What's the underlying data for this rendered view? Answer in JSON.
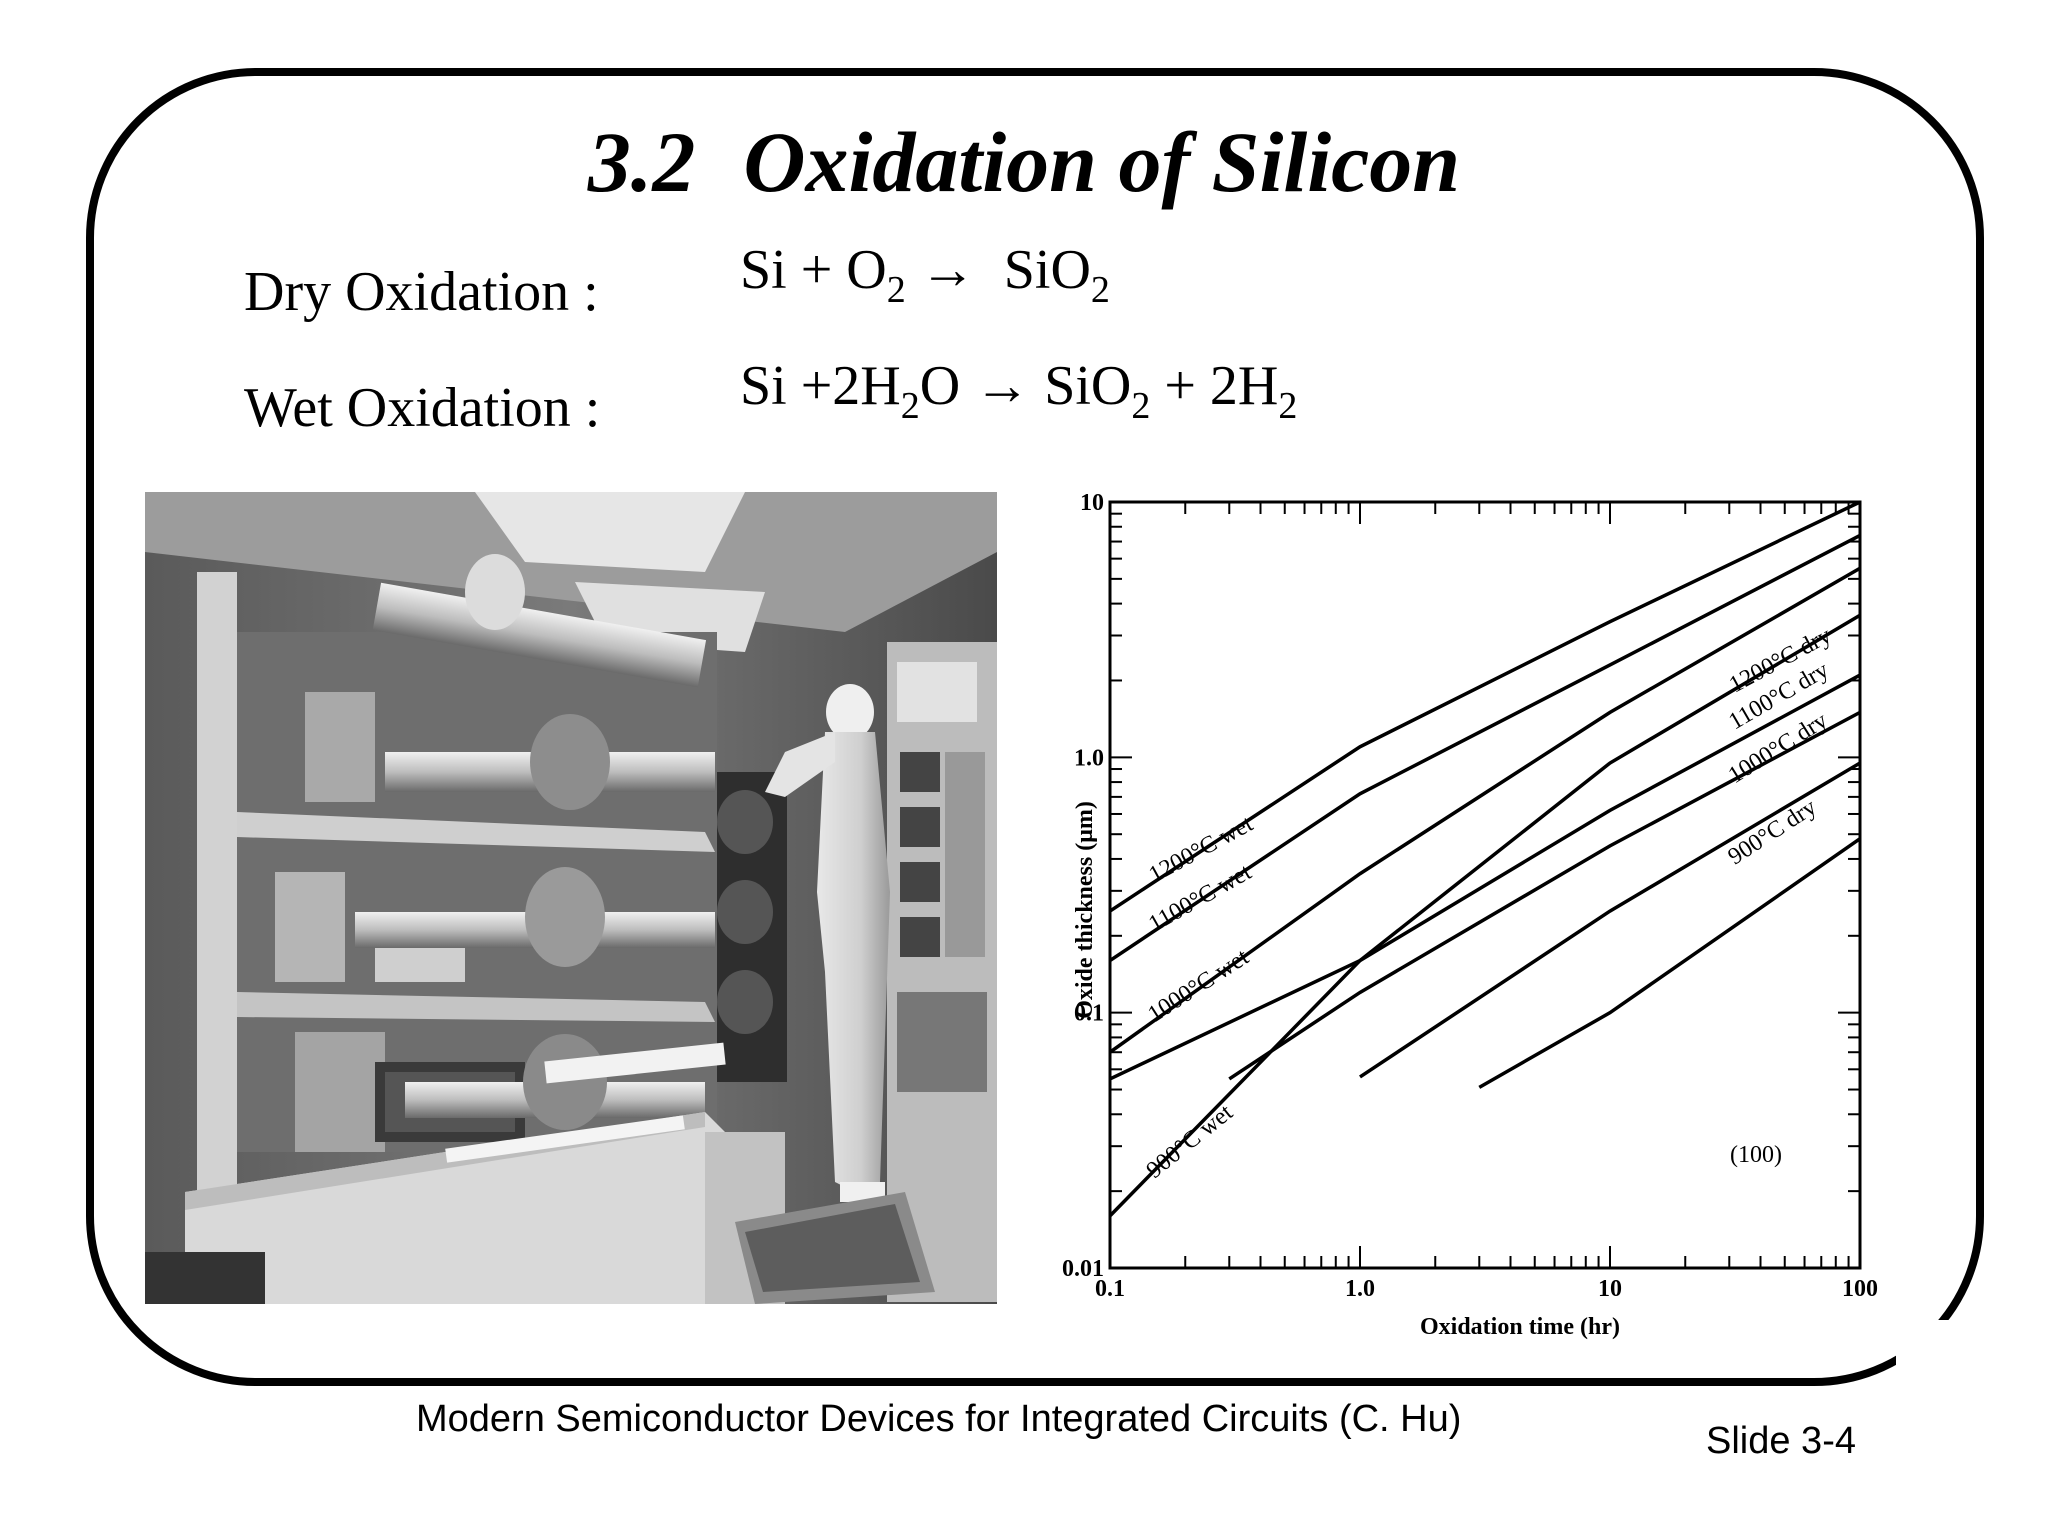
{
  "slide": {
    "title_number": "3.2",
    "title_text": "Oxidation of Silicon",
    "dry_label": "Dry Oxidation :",
    "wet_label": "Wet Oxidation :",
    "dry_eq": {
      "a": "Si + O",
      "a_sub": "2",
      "arrow": "→",
      "b": "SiO",
      "b_sub": "2"
    },
    "wet_eq": {
      "a": "Si +2H",
      "a_sub": "2",
      "a2": "O",
      "arrow": "→",
      "b": "SiO",
      "b_sub": "2",
      "c": "+ 2H",
      "c_sub": "2"
    },
    "footer": "Modern Semiconductor Devices for Integrated Circuits (C. Hu)",
    "slide_number": "Slide 3-4"
  },
  "chart_data": {
    "type": "line",
    "xlabel": "Oxidation time (hr)",
    "ylabel": "Oxide thickness (μm)",
    "x_scale": "log",
    "y_scale": "log",
    "xlim": [
      0.1,
      100
    ],
    "ylim": [
      0.01,
      10
    ],
    "x_ticks": [
      "0.1",
      "1.0",
      "10",
      "100"
    ],
    "y_ticks": [
      "0.01",
      "0.1",
      "1.0",
      "10"
    ],
    "annotation": "(100)",
    "series": [
      {
        "name": "1200°C wet",
        "points": [
          [
            0.1,
            0.25
          ],
          [
            1,
            1.1
          ],
          [
            10,
            3.4
          ],
          [
            100,
            10
          ]
        ]
      },
      {
        "name": "1100°C wet",
        "points": [
          [
            0.1,
            0.16
          ],
          [
            1,
            0.72
          ],
          [
            10,
            2.3
          ],
          [
            100,
            7.4
          ]
        ]
      },
      {
        "name": "1000°C wet",
        "points": [
          [
            0.1,
            0.07
          ],
          [
            1,
            0.35
          ],
          [
            10,
            1.5
          ],
          [
            100,
            5.5
          ]
        ]
      },
      {
        "name": "900°C wet",
        "points": [
          [
            0.1,
            0.016
          ],
          [
            1,
            0.16
          ],
          [
            10,
            0.95
          ],
          [
            100,
            3.6
          ]
        ]
      },
      {
        "name": "1200°C dry",
        "points": [
          [
            0.1,
            0.055
          ],
          [
            1,
            0.16
          ],
          [
            10,
            0.62
          ],
          [
            100,
            2.1
          ]
        ]
      },
      {
        "name": "1100°C dry",
        "points": [
          [
            0.3,
            0.055
          ],
          [
            1,
            0.12
          ],
          [
            10,
            0.45
          ],
          [
            100,
            1.5
          ]
        ]
      },
      {
        "name": "1000°C dry",
        "points": [
          [
            1,
            0.056
          ],
          [
            10,
            0.25
          ],
          [
            100,
            0.95
          ]
        ]
      },
      {
        "name": "900°C dry",
        "points": [
          [
            3,
            0.051
          ],
          [
            10,
            0.1
          ],
          [
            100,
            0.48
          ]
        ]
      }
    ]
  }
}
